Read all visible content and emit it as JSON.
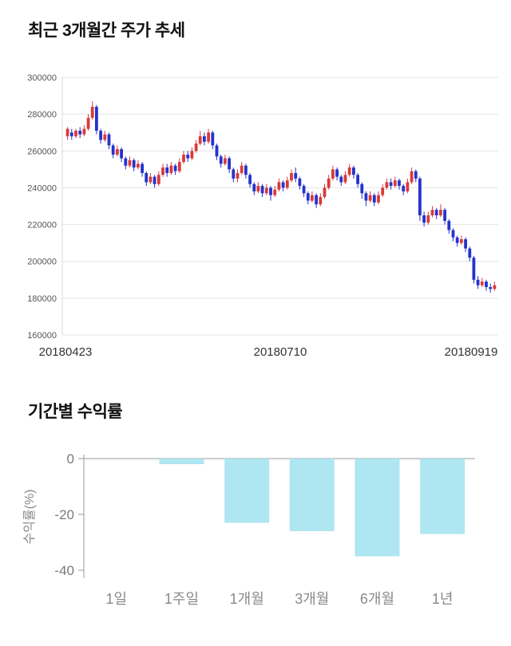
{
  "price_section": {
    "title": "최근 3개월간 주가 추세"
  },
  "returns_section": {
    "title": "기간별 수익률"
  },
  "chart_data": [
    {
      "type": "candlestick",
      "title": "최근 3개월간 주가 추세",
      "ylim": [
        160000,
        300000
      ],
      "yticks": [
        160000,
        180000,
        200000,
        220000,
        240000,
        260000,
        280000,
        300000
      ],
      "xtick_labels": [
        "20180423",
        "20180710",
        "20180919"
      ],
      "up_color": "#d93a3a",
      "down_color": "#2433cc",
      "grid": true,
      "ohlc": [
        [
          268000,
          273000,
          266000,
          272000
        ],
        [
          270000,
          272000,
          266000,
          268000
        ],
        [
          268000,
          272000,
          267000,
          271000
        ],
        [
          271000,
          273000,
          267000,
          269000
        ],
        [
          269000,
          274000,
          268000,
          272000
        ],
        [
          272000,
          280000,
          271000,
          278000
        ],
        [
          278000,
          287000,
          277000,
          284000
        ],
        [
          284000,
          285000,
          269000,
          271000
        ],
        [
          271000,
          272000,
          264000,
          266000
        ],
        [
          266000,
          271000,
          265000,
          269000
        ],
        [
          269000,
          270000,
          261000,
          263000
        ],
        [
          263000,
          264000,
          256000,
          258000
        ],
        [
          258000,
          263000,
          257000,
          261000
        ],
        [
          261000,
          262000,
          254000,
          256000
        ],
        [
          256000,
          257000,
          250000,
          252000
        ],
        [
          252000,
          257000,
          251000,
          255000
        ],
        [
          255000,
          256000,
          249000,
          251000
        ],
        [
          251000,
          255000,
          250000,
          253000
        ],
        [
          253000,
          254000,
          246000,
          248000
        ],
        [
          248000,
          249000,
          241000,
          243000
        ],
        [
          243000,
          248000,
          242000,
          246000
        ],
        [
          246000,
          247000,
          240000,
          242000
        ],
        [
          242000,
          249000,
          241000,
          247000
        ],
        [
          247000,
          253000,
          246000,
          251000
        ],
        [
          251000,
          253000,
          246000,
          248000
        ],
        [
          248000,
          254000,
          247000,
          252000
        ],
        [
          252000,
          253000,
          247000,
          249000
        ],
        [
          249000,
          256000,
          248000,
          254000
        ],
        [
          254000,
          260000,
          253000,
          258000
        ],
        [
          258000,
          260000,
          254000,
          256000
        ],
        [
          256000,
          262000,
          255000,
          260000
        ],
        [
          260000,
          266000,
          259000,
          264000
        ],
        [
          264000,
          271000,
          263000,
          268000
        ],
        [
          268000,
          270000,
          263000,
          265000
        ],
        [
          265000,
          272000,
          264000,
          270000
        ],
        [
          270000,
          271000,
          261000,
          263000
        ],
        [
          263000,
          264000,
          255000,
          257000
        ],
        [
          257000,
          258000,
          251000,
          253000
        ],
        [
          253000,
          258000,
          252000,
          256000
        ],
        [
          256000,
          257000,
          248000,
          250000
        ],
        [
          250000,
          251000,
          243000,
          245000
        ],
        [
          245000,
          250000,
          243000,
          248000
        ],
        [
          248000,
          254000,
          247000,
          252000
        ],
        [
          252000,
          253000,
          245000,
          247000
        ],
        [
          247000,
          248000,
          240000,
          242000
        ],
        [
          242000,
          243000,
          236000,
          238000
        ],
        [
          238000,
          243000,
          237000,
          241000
        ],
        [
          241000,
          242000,
          235000,
          237000
        ],
        [
          237000,
          242000,
          236000,
          240000
        ],
        [
          240000,
          241000,
          233000,
          236000
        ],
        [
          236000,
          241000,
          235000,
          239000
        ],
        [
          239000,
          245000,
          238000,
          243000
        ],
        [
          243000,
          244000,
          238000,
          240000
        ],
        [
          240000,
          246000,
          239000,
          244000
        ],
        [
          244000,
          250000,
          243000,
          248000
        ],
        [
          248000,
          251000,
          243000,
          245000
        ],
        [
          245000,
          246000,
          239000,
          241000
        ],
        [
          241000,
          242000,
          235000,
          237000
        ],
        [
          237000,
          238000,
          231000,
          233000
        ],
        [
          233000,
          238000,
          232000,
          236000
        ],
        [
          236000,
          237000,
          229000,
          231000
        ],
        [
          231000,
          237000,
          230000,
          235000
        ],
        [
          235000,
          242000,
          234000,
          240000
        ],
        [
          240000,
          247000,
          239000,
          245000
        ],
        [
          245000,
          252000,
          244000,
          250000
        ],
        [
          250000,
          251000,
          244000,
          246000
        ],
        [
          246000,
          247000,
          241000,
          243000
        ],
        [
          243000,
          249000,
          242000,
          247000
        ],
        [
          247000,
          253000,
          246000,
          251000
        ],
        [
          251000,
          252000,
          245000,
          247000
        ],
        [
          247000,
          248000,
          240000,
          242000
        ],
        [
          242000,
          243000,
          234000,
          237000
        ],
        [
          237000,
          238000,
          230000,
          233000
        ],
        [
          233000,
          238000,
          232000,
          236000
        ],
        [
          236000,
          237000,
          230000,
          232000
        ],
        [
          232000,
          238000,
          231000,
          236000
        ],
        [
          236000,
          242000,
          235000,
          240000
        ],
        [
          240000,
          245000,
          239000,
          243000
        ],
        [
          243000,
          245000,
          239000,
          241000
        ],
        [
          241000,
          246000,
          240000,
          244000
        ],
        [
          244000,
          245000,
          239000,
          241000
        ],
        [
          241000,
          242000,
          236000,
          238000
        ],
        [
          238000,
          245000,
          237000,
          243000
        ],
        [
          243000,
          251000,
          242000,
          249000
        ],
        [
          249000,
          250000,
          243000,
          245000
        ],
        [
          245000,
          246000,
          222000,
          225000
        ],
        [
          225000,
          227000,
          219000,
          221000
        ],
        [
          221000,
          227000,
          220000,
          225000
        ],
        [
          225000,
          230000,
          224000,
          228000
        ],
        [
          228000,
          229000,
          223000,
          225000
        ],
        [
          225000,
          231000,
          224000,
          228000
        ],
        [
          228000,
          229000,
          220000,
          222000
        ],
        [
          222000,
          223000,
          215000,
          217000
        ],
        [
          217000,
          218000,
          211000,
          213000
        ],
        [
          213000,
          214000,
          208000,
          210000
        ],
        [
          210000,
          214000,
          209000,
          212000
        ],
        [
          212000,
          213000,
          205000,
          207000
        ],
        [
          207000,
          208000,
          200000,
          202000
        ],
        [
          202000,
          203000,
          188000,
          190000
        ],
        [
          190000,
          192000,
          185000,
          187000
        ],
        [
          187000,
          191000,
          186000,
          189000
        ],
        [
          189000,
          190000,
          184000,
          186000
        ],
        [
          186000,
          188000,
          183000,
          185000
        ],
        [
          185000,
          189000,
          184000,
          187000
        ]
      ]
    },
    {
      "type": "bar",
      "title": "기간별 수익률",
      "categories": [
        "1일",
        "1주일",
        "1개월",
        "3개월",
        "6개월",
        "1년"
      ],
      "values": [
        0,
        -2,
        -23,
        -26,
        -35,
        -27
      ],
      "ylabel": "수익률(%)",
      "ylim": [
        -40,
        0
      ],
      "yticks": [
        0,
        -20,
        -40
      ],
      "bar_color": "#aee6f2",
      "axis_color": "#999999"
    }
  ]
}
